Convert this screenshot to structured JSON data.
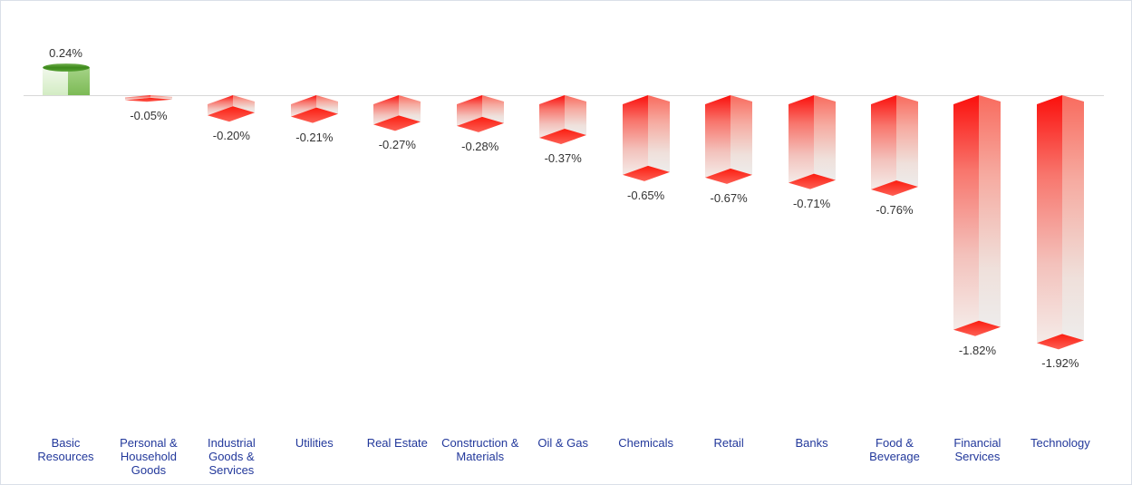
{
  "chart_data": {
    "type": "bar",
    "title": "",
    "value_unit": "%",
    "orientation": "vertical",
    "grid": false,
    "legend": false,
    "baseline": 0,
    "categories": [
      "Basic Resources",
      "Personal & Household Goods",
      "Industrial Goods & Services",
      "Utilities",
      "Real Estate",
      "Construction & Materials",
      "Oil & Gas",
      "Chemicals",
      "Retail",
      "Banks",
      "Food & Beverage",
      "Financial Services",
      "Technology"
    ],
    "category_display": [
      "Basic\nResources",
      "Personal &\nHousehold\nGoods",
      "Industrial\nGoods &\nServices",
      "Utilities",
      "Real Estate",
      "Construction &\nMaterials",
      "Oil & Gas",
      "Chemicals",
      "Retail",
      "Banks",
      "Food &\nBeverage",
      "Financial\nServices",
      "Technology"
    ],
    "values": [
      0.24,
      -0.05,
      -0.2,
      -0.21,
      -0.27,
      -0.28,
      -0.37,
      -0.65,
      -0.67,
      -0.71,
      -0.76,
      -1.82,
      -1.92
    ],
    "value_labels": [
      "0.24%",
      "-0.05%",
      "-0.20%",
      "-0.21%",
      "-0.27%",
      "-0.28%",
      "-0.37%",
      "-0.65%",
      "-0.67%",
      "-0.71%",
      "-0.76%",
      "-1.82%",
      "-1.92%"
    ],
    "colors": {
      "positive_bar": "#4e9a2a",
      "negative_bar": "#fb1511",
      "axis_line": "#d8d8d8",
      "value_label_text": "#333333",
      "category_label_text": "#22389b",
      "background": "#ffffff",
      "border": "#dadfe8"
    }
  }
}
